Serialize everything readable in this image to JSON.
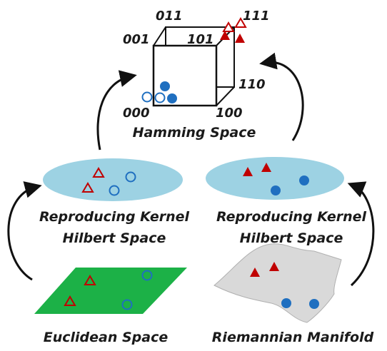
{
  "hamming": {
    "title": "Hamming Space",
    "vertices": {
      "v000": "000",
      "v001": "001",
      "v011": "011",
      "v111": "111",
      "v101": "101",
      "v110": "110",
      "v100": "100"
    }
  },
  "rkhs_left": {
    "line1": "Reproducing Kernel",
    "line2": "Hilbert Space"
  },
  "rkhs_right": {
    "line1": "Reproducing Kernel",
    "line2": "Hilbert Space"
  },
  "euclidean": {
    "label": "Euclidean Space"
  },
  "riemannian": {
    "label": "Riemannian Manifold"
  },
  "colors": {
    "ellipse_fill": "#9dd2e3",
    "plane_fill": "#1cb147",
    "manifold_fill": "#d9d9d9",
    "marker_red": "#c00000",
    "marker_blue": "#1f6fc0",
    "arrow": "#111111"
  }
}
